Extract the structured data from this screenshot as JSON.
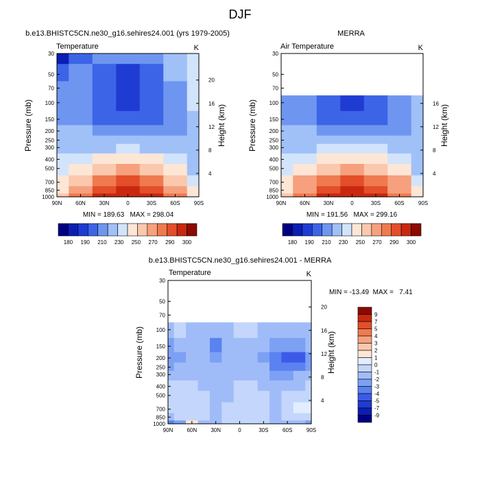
{
  "page": {
    "title": "DJF"
  },
  "colors": {
    "temperature_scale": [
      "#000080",
      "#0a1eb4",
      "#1e3cd2",
      "#3c64e6",
      "#6e96f0",
      "#a0c0f8",
      "#d2e4fc",
      "#fde6d6",
      "#fac8ac",
      "#f6a07e",
      "#f07a50",
      "#e44e2a",
      "#c8280f",
      "#8c0a00"
    ],
    "difference_scale": [
      "#000080",
      "#0a1eb4",
      "#1e3cd2",
      "#3c5ae8",
      "#5a82f0",
      "#7ca0f4",
      "#a0bcf8",
      "#c4d6fc",
      "#e2eefe",
      "#fde6d6",
      "#fac8ac",
      "#f6a07e",
      "#f07a50",
      "#e44e2a",
      "#c8280f",
      "#8c0a00"
    ],
    "missing": "#ffffff"
  },
  "chart_data": [
    {
      "type": "heatmap",
      "id": "model",
      "title": "b.e13.BHISTC5CN.ne30_g16.sehires24.001 (yrs 1979-2005)",
      "left_label": "Temperature",
      "units": "K",
      "ylabel": "Pressure (mb)",
      "right_label": "Height (km)",
      "x_ticks": [
        "90N",
        "60N",
        "30N",
        "0",
        "30S",
        "60S",
        "90S"
      ],
      "y_ticks": [
        "30",
        "50",
        "70",
        "100",
        "150",
        "200",
        "250",
        "300",
        "400",
        "500",
        "700",
        "850",
        "1000"
      ],
      "height_ticks": [
        "4",
        "8",
        "12",
        "16",
        "20"
      ],
      "lat": [
        90,
        60,
        30,
        0,
        -30,
        -60,
        -90
      ],
      "pressure": [
        30,
        50,
        70,
        100,
        150,
        200,
        250,
        300,
        400,
        500,
        700,
        850,
        1000
      ],
      "values": [
        [
          188,
          201,
          212,
          215,
          217,
          228,
          232
        ],
        [
          204,
          210,
          204,
          197,
          204,
          222,
          235
        ],
        [
          212,
          211,
          202,
          195,
          202,
          218,
          234
        ],
        [
          216,
          214,
          202,
          192,
          202,
          216,
          230
        ],
        [
          218,
          216,
          207,
          200,
          207,
          215,
          228
        ],
        [
          220,
          220,
          216,
          212,
          216,
          219,
          226
        ],
        [
          222,
          223,
          222,
          221,
          222,
          221,
          224
        ],
        [
          226,
          228,
          229,
          230,
          229,
          224,
          222
        ],
        [
          232,
          238,
          244,
          247,
          244,
          233,
          222
        ],
        [
          236,
          247,
          256,
          260,
          256,
          244,
          228
        ],
        [
          243,
          259,
          275,
          280,
          275,
          259,
          236
        ],
        [
          247,
          265,
          285,
          291,
          285,
          268,
          240
        ],
        [
          250,
          270,
          291,
          298,
          292,
          275,
          245
        ]
      ],
      "stats": "MIN = 189.63   MAX = 298.04",
      "colorbar_labels": [
        "180",
        "190",
        "210",
        "230",
        "250",
        "270",
        "290",
        "300"
      ]
    },
    {
      "type": "heatmap",
      "id": "obs",
      "title": "MERRA",
      "left_label": "Air Temperature",
      "units": "K",
      "ylabel": "Pressure (mb)",
      "right_label": "Height (km)",
      "x_ticks": [
        "90N",
        "60N",
        "30N",
        "0",
        "30S",
        "60S",
        "90S"
      ],
      "y_ticks": [
        "30",
        "50",
        "70",
        "100",
        "150",
        "200",
        "250",
        "300",
        "400",
        "500",
        "700",
        "850",
        "1000"
      ],
      "height_ticks": [
        "4",
        "8",
        "12",
        "16"
      ],
      "lat": [
        90,
        60,
        30,
        0,
        -30,
        -60,
        -90
      ],
      "pressure": [
        30,
        50,
        70,
        100,
        150,
        200,
        250,
        300,
        400,
        500,
        700,
        850,
        1000
      ],
      "values": [
        [
          null,
          null,
          null,
          null,
          null,
          null,
          null
        ],
        [
          null,
          null,
          null,
          null,
          null,
          null,
          null
        ],
        [
          null,
          null,
          null,
          null,
          null,
          null,
          null
        ],
        [
          216,
          214,
          203,
          193,
          203,
          215,
          224
        ],
        [
          218,
          216,
          208,
          201,
          208,
          215,
          226
        ],
        [
          220,
          220,
          217,
          213,
          217,
          219,
          226
        ],
        [
          222,
          223,
          223,
          222,
          223,
          221,
          224
        ],
        [
          227,
          229,
          230,
          231,
          230,
          225,
          222
        ],
        [
          233,
          239,
          245,
          248,
          245,
          234,
          223
        ],
        [
          237,
          248,
          257,
          261,
          257,
          245,
          229
        ],
        [
          244,
          260,
          276,
          281,
          276,
          260,
          237
        ],
        [
          248,
          266,
          286,
          292,
          286,
          269,
          242
        ],
        [
          251,
          272,
          292,
          299,
          293,
          276,
          247
        ]
      ],
      "stats": "MIN = 191.56   MAX = 299.16",
      "colorbar_labels": [
        "180",
        "190",
        "210",
        "230",
        "250",
        "270",
        "290",
        "300"
      ]
    },
    {
      "type": "heatmap",
      "id": "difference",
      "title": "b.e13.BHISTC5CN.ne30_g16.sehires24.001 - MERRA",
      "left_label": "Temperature",
      "units": "K",
      "ylabel": "Pressure (mb)",
      "right_label": "Height (km)",
      "x_ticks": [
        "90N",
        "60N",
        "30N",
        "0",
        "30S",
        "60S",
        "90S"
      ],
      "y_ticks": [
        "30",
        "50",
        "70",
        "100",
        "150",
        "200",
        "250",
        "300",
        "400",
        "500",
        "700",
        "850",
        "1000"
      ],
      "height_ticks": [
        "4",
        "8",
        "12",
        "16",
        "20"
      ],
      "lat": [
        90,
        75,
        60,
        45,
        30,
        15,
        0,
        -15,
        -30,
        -45,
        -60,
        -75,
        -90
      ],
      "pressure": [
        30,
        50,
        70,
        100,
        150,
        200,
        250,
        300,
        400,
        500,
        700,
        850,
        1000
      ],
      "values": [
        [
          null,
          null,
          null,
          null,
          null,
          null,
          null,
          null,
          null,
          null,
          null,
          null,
          null
        ],
        [
          null,
          null,
          null,
          null,
          null,
          null,
          null,
          null,
          null,
          null,
          null,
          null,
          null
        ],
        [
          null,
          null,
          null,
          null,
          null,
          null,
          null,
          null,
          null,
          null,
          null,
          null,
          null
        ],
        [
          -1.2,
          -1.0,
          -1.1,
          -1.3,
          -1.5,
          -1.2,
          -1.0,
          -1.0,
          -1.1,
          -1.4,
          -1.6,
          -1.5,
          -1.2
        ],
        [
          -2.2,
          -1.8,
          -1.5,
          -1.8,
          -3.4,
          -1.6,
          -1.2,
          -1.3,
          -1.8,
          -2.2,
          -2.8,
          -2.6,
          -2.0
        ],
        [
          -3.0,
          -2.6,
          -1.8,
          -1.9,
          -2.8,
          -1.9,
          -1.3,
          -1.4,
          -2.4,
          -3.2,
          -4.6,
          -4.2,
          -2.8
        ],
        [
          -2.2,
          -2.0,
          -1.6,
          -1.7,
          -2.0,
          -1.7,
          -1.2,
          -1.3,
          -2.0,
          -3.1,
          -3.6,
          -3.2,
          -2.2
        ],
        [
          -1.6,
          -1.4,
          -1.2,
          -1.3,
          -1.6,
          -1.5,
          -1.1,
          -1.2,
          -1.5,
          -2.6,
          -2.4,
          -2.0,
          -1.5
        ],
        [
          -0.8,
          -0.9,
          -1.0,
          -1.1,
          -1.3,
          -1.2,
          -0.9,
          -0.9,
          -1.1,
          -1.8,
          -1.4,
          -1.1,
          -0.8
        ],
        [
          -0.6,
          -0.7,
          -0.9,
          -1.0,
          -1.6,
          -1.1,
          -0.8,
          -0.8,
          -1.0,
          -1.4,
          -1.0,
          -0.7,
          -0.5
        ],
        [
          -0.5,
          -0.6,
          -0.8,
          -0.9,
          -1.3,
          -1.0,
          -0.8,
          -0.8,
          -0.9,
          -1.1,
          -0.6,
          0.4,
          0.6
        ],
        [
          -1.2,
          -1.0,
          -0.9,
          -1.0,
          -1.2,
          -1.0,
          -0.9,
          -0.9,
          -1.0,
          -1.2,
          -0.8,
          -0.4,
          -0.6
        ],
        [
          -4.0,
          -3.0,
          1.5,
          -1.5,
          -1.2,
          -1.0,
          -1.0,
          -1.0,
          -1.0,
          -1.2,
          -1.5,
          -1.8,
          -2.5
        ]
      ],
      "stats": "MIN = -13.49  MAX =   7.41",
      "colorbar_labels": [
        "9",
        "7",
        "5",
        "4",
        "3",
        "2",
        "1",
        "0",
        "-1",
        "-2",
        "-3",
        "-4",
        "-5",
        "-7",
        "-9"
      ]
    }
  ]
}
